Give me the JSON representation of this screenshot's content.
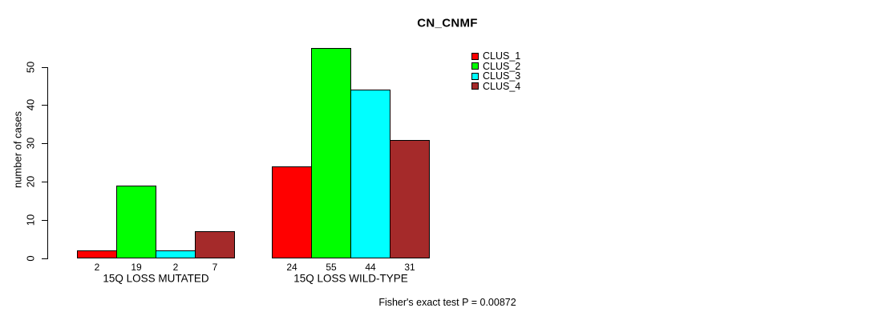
{
  "title": "CN_CNMF",
  "ylabel": "number of cases",
  "annotation": "Fisher's exact test P = 0.00872",
  "legend": [
    {
      "label": "CLUS_1",
      "color": "#ff0000"
    },
    {
      "label": "CLUS_2",
      "color": "#00ff00"
    },
    {
      "label": "CLUS_3",
      "color": "#00ffff"
    },
    {
      "label": "CLUS_4",
      "color": "#a52a2a"
    }
  ],
  "chart_data": {
    "type": "bar",
    "title": "CN_CNMF",
    "ylabel": "number of cases",
    "xlabel": "",
    "categories": [
      "15Q LOSS MUTATED",
      "15Q LOSS WILD-TYPE"
    ],
    "series": [
      {
        "name": "CLUS_1",
        "color": "#ff0000",
        "values": [
          2,
          24
        ]
      },
      {
        "name": "CLUS_2",
        "color": "#00ff00",
        "values": [
          19,
          55
        ]
      },
      {
        "name": "CLUS_3",
        "color": "#00ffff",
        "values": [
          2,
          44
        ]
      },
      {
        "name": "CLUS_4",
        "color": "#a52a2a",
        "values": [
          7,
          31
        ]
      }
    ],
    "bar_value_labels": [
      [
        2,
        19,
        2,
        7
      ],
      [
        24,
        55,
        44,
        31
      ]
    ],
    "yticks": [
      0,
      10,
      20,
      30,
      40,
      50
    ],
    "ylim": [
      0,
      57.2
    ],
    "grid": false,
    "legend_position": "top-right-inside",
    "bar_border_color": "#000000",
    "annotation": "Fisher's exact test P = 0.00872"
  }
}
